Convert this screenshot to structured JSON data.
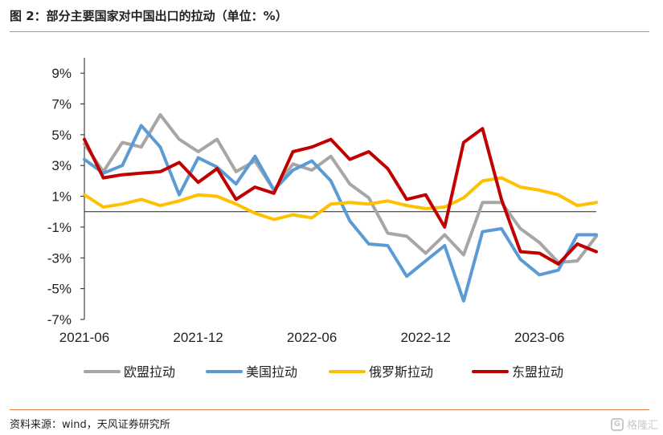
{
  "title": "图 2：部分主要国家对中国出口的拉动（单位：%）",
  "source": "资料来源：wind，天风证券研究所",
  "watermark": "格隆汇",
  "chart_data": {
    "type": "line",
    "x": [
      "2021-06",
      "2021-07",
      "2021-08",
      "2021-09",
      "2021-10",
      "2021-11",
      "2021-12",
      "2022-01",
      "2022-02",
      "2022-03",
      "2022-04",
      "2022-05",
      "2022-06",
      "2022-07",
      "2022-08",
      "2022-09",
      "2022-10",
      "2022-11",
      "2022-12",
      "2023-01",
      "2023-02",
      "2023-03",
      "2023-04",
      "2023-05",
      "2023-06",
      "2023-07",
      "2023-08",
      "2023-09"
    ],
    "x_tick_labels": [
      "2021-06",
      "2021-12",
      "2022-06",
      "2022-12",
      "2023-06"
    ],
    "y_tick_labels": [
      "9%",
      "7%",
      "5%",
      "3%",
      "1%",
      "-1%",
      "-3%",
      "-5%",
      "-7%"
    ],
    "y_ticks": [
      9,
      7,
      5,
      3,
      1,
      -1,
      -3,
      -5,
      -7
    ],
    "ylim": [
      -7,
      10
    ],
    "series": [
      {
        "name": "欧盟拉动",
        "color": "#a6a6a6",
        "values": [
          4.4,
          2.6,
          4.5,
          4.2,
          6.3,
          4.7,
          3.9,
          4.7,
          2.6,
          3.3,
          1.4,
          3.1,
          2.7,
          3.6,
          1.8,
          0.9,
          -1.4,
          -1.6,
          -2.7,
          -1.5,
          -2.8,
          0.6,
          0.6,
          -1.1,
          -2.0,
          -3.3,
          -3.2,
          -1.6
        ]
      },
      {
        "name": "美国拉动",
        "color": "#5b9bd5",
        "values": [
          3.4,
          2.5,
          3.0,
          5.6,
          4.2,
          1.1,
          3.5,
          2.9,
          1.8,
          3.6,
          1.4,
          2.7,
          3.3,
          2.0,
          -0.6,
          -2.1,
          -2.2,
          -4.2,
          -3.2,
          -2.2,
          -5.8,
          -1.3,
          -1.1,
          -3.1,
          -4.1,
          -3.8,
          -1.5,
          -1.5
        ]
      },
      {
        "name": "俄罗斯拉动",
        "color": "#ffc000",
        "values": [
          1.1,
          0.3,
          0.5,
          0.8,
          0.4,
          0.7,
          1.1,
          1.0,
          0.5,
          -0.1,
          -0.5,
          -0.2,
          -0.4,
          0.5,
          0.6,
          0.5,
          0.7,
          0.4,
          0.2,
          0.3,
          0.9,
          2.0,
          2.2,
          1.6,
          1.4,
          1.1,
          0.4,
          0.6
        ]
      },
      {
        "name": "东盟拉动",
        "color": "#c00000",
        "values": [
          4.7,
          2.2,
          2.4,
          2.5,
          2.6,
          3.2,
          1.9,
          2.8,
          0.8,
          1.6,
          1.2,
          3.9,
          4.2,
          4.7,
          3.4,
          3.9,
          2.8,
          0.8,
          1.1,
          -1.0,
          4.5,
          5.4,
          0.8,
          -2.6,
          -2.7,
          -3.4,
          -2.1,
          -2.6
        ]
      }
    ]
  }
}
